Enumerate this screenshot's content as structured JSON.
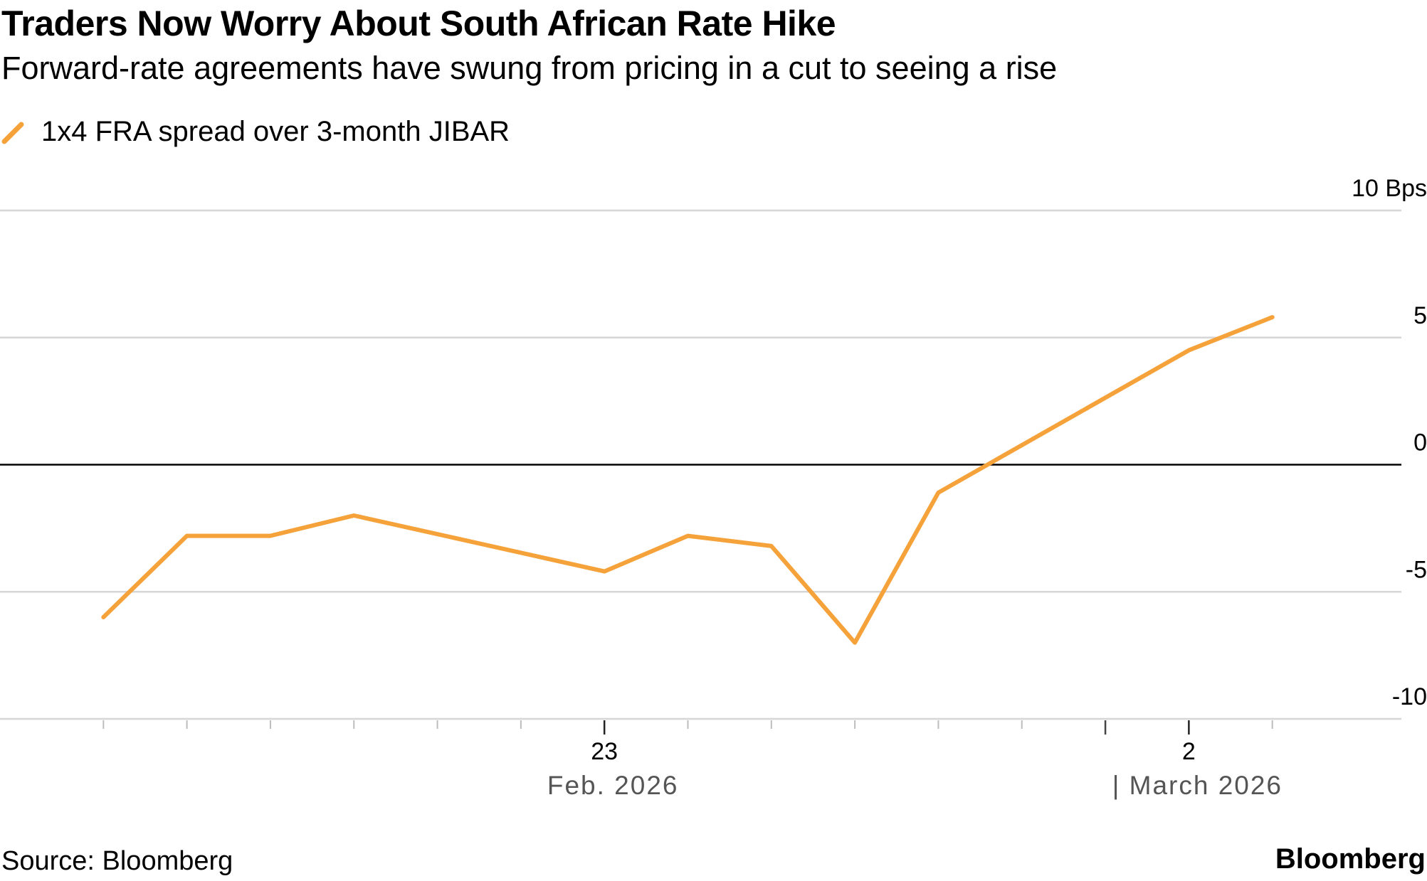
{
  "chart_data": {
    "type": "line",
    "title": "Traders Now Worry About South African Rate Hike",
    "subtitle": "Forward-rate agreements have swung from pricing in a cut to seeing a rise",
    "series": [
      {
        "name": "1x4 FRA spread over 3-month JIBAR",
        "color": "#f5a23a",
        "x": [
          "2026-02-17",
          "2026-02-18",
          "2026-02-19",
          "2026-02-20",
          "2026-02-23",
          "2026-02-24",
          "2026-02-25",
          "2026-02-26",
          "2026-02-27",
          "2026-03-02",
          "2026-03-03"
        ],
        "values": [
          -6.0,
          -2.8,
          -2.8,
          -2.0,
          -4.2,
          -2.8,
          -3.2,
          -7.0,
          -1.1,
          4.5,
          5.8
        ]
      }
    ],
    "ylim": [
      -10,
      10
    ],
    "yticks": [
      {
        "value": 10,
        "label": "10 Bps"
      },
      {
        "value": 5,
        "label": "5"
      },
      {
        "value": 0,
        "label": "0"
      },
      {
        "value": -5,
        "label": "-5"
      },
      {
        "value": -10,
        "label": "-10"
      }
    ],
    "xticks": [
      {
        "date": "2026-02-23",
        "label": "23"
      },
      {
        "date": "2026-03-02",
        "label": "2"
      }
    ],
    "month_labels": [
      {
        "date": "2026-02-23",
        "label": "Feb. 2026"
      },
      {
        "date": "2026-03-02",
        "label": "| March 2026"
      }
    ],
    "minor_tick_dates": [
      "2026-02-17",
      "2026-02-18",
      "2026-02-19",
      "2026-02-20",
      "2026-02-21",
      "2026-02-22",
      "2026-02-24",
      "2026-02-25",
      "2026-02-26",
      "2026-02-27",
      "2026-02-28",
      "2026-03-01",
      "2026-03-03"
    ],
    "month_boundary_date": "2026-03-01",
    "x_domain": [
      "2026-02-16",
      "2026-03-04"
    ],
    "xlabel": "",
    "ylabel": ""
  },
  "legend_label": "1x4 FRA spread over 3-month JIBAR",
  "footer": {
    "source": "Source: Bloomberg",
    "brand": "Bloomberg"
  },
  "colors": {
    "line": "#f5a23a",
    "grid": "#d6d6d6",
    "zero_line": "#000000",
    "axis_text": "#000000",
    "month_text": "#555555"
  }
}
